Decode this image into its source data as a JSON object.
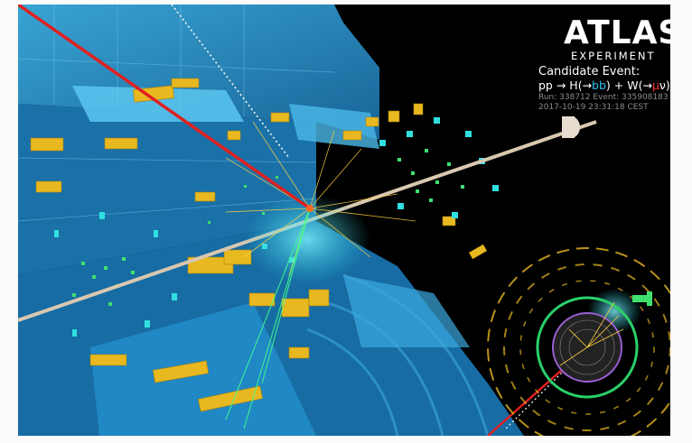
{
  "logo": {
    "word": "ATLAS",
    "subtitle": "EXPERIMENT",
    "icon": "atlas-figure-globe-icon"
  },
  "event_info": {
    "title": "Candidate Event:",
    "process_prefix": "pp → H(→",
    "process_bb": "bb",
    "process_mid": ") + W(→",
    "process_mu": "μ",
    "process_suffix": "ν)",
    "run_line": "Run: 338712 Event: 335908183",
    "date_line": "2017-10-19 23:31:18 CEST"
  },
  "colors": {
    "background": "#000000",
    "detector_blue": "#2a9fd6",
    "detector_light": "#56c3ee",
    "calorimeter_yellow": "#e8b820",
    "muon_track_red": "#e02020",
    "hits_green": "#40e070",
    "hits_cyan": "#30e0e0",
    "bb_label": "#2fc0f0",
    "mu_label": "#ff3030",
    "meta_text": "#8a8a8a"
  }
}
